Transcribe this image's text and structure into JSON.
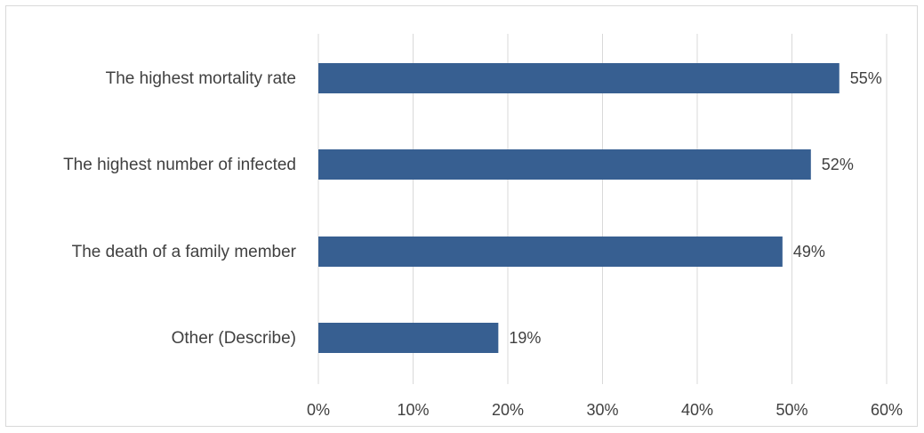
{
  "chart_data": {
    "type": "bar",
    "orientation": "horizontal",
    "categories": [
      "The highest mortality rate",
      "The highest number of infected",
      "The death of a family member",
      "Other (Describe)"
    ],
    "values": [
      55,
      52,
      49,
      19
    ],
    "data_labels": [
      "55%",
      "52%",
      "49%",
      "19%"
    ],
    "x_ticks": [
      "0%",
      "10%",
      "20%",
      "30%",
      "40%",
      "50%",
      "60%"
    ],
    "xlim": [
      0,
      60
    ],
    "grid": true,
    "legend": "none",
    "bar_color": "#375f91",
    "grid_color": "#d9d9d9"
  }
}
